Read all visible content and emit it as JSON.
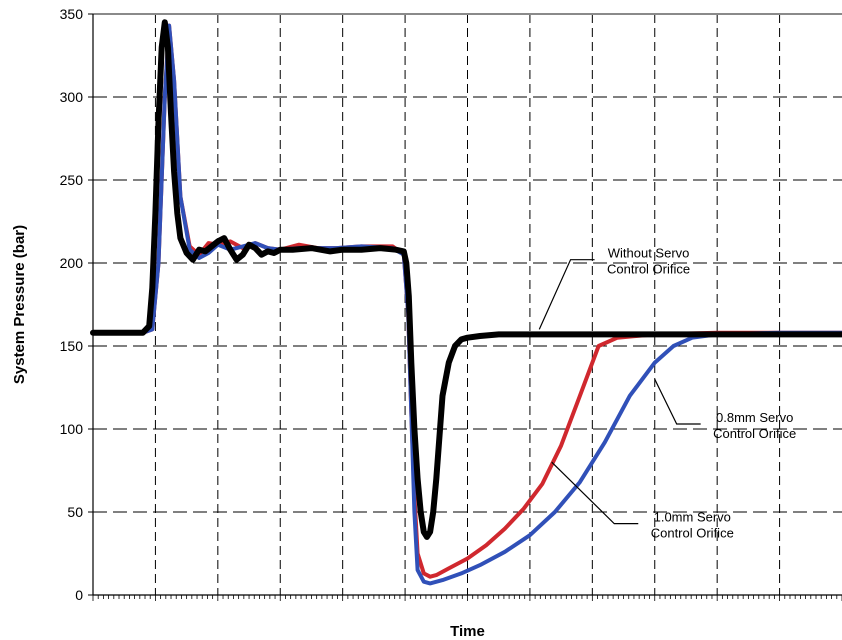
{
  "chart_data": {
    "type": "line",
    "title": "",
    "xlabel": "Time",
    "ylabel": "System Pressure (bar)",
    "ylim": [
      0,
      350
    ],
    "yticks": [
      0,
      50,
      100,
      150,
      200,
      250,
      300,
      350
    ],
    "xlim": [
      0,
      12
    ],
    "x_tick_labels_shown": false,
    "grid": "dashed",
    "series": [
      {
        "color": "#d0282e",
        "x": [
          0,
          0.8,
          0.95,
          1.05,
          1.15,
          1.22,
          1.3,
          1.4,
          1.55,
          1.7,
          1.85,
          2.0,
          2.2,
          2.4,
          2.6,
          2.8,
          3.0,
          3.3,
          3.6,
          3.9,
          4.3,
          4.8,
          4.98,
          5.05,
          5.1,
          5.15,
          5.2,
          5.3,
          5.4,
          5.5,
          5.7,
          6.0,
          6.3,
          6.6,
          6.9,
          7.2,
          7.5,
          7.8,
          8.1,
          8.4,
          9.0,
          10.0,
          11.0,
          12.0
        ],
        "values": [
          158,
          158,
          160,
          200,
          300,
          343,
          310,
          240,
          210,
          205,
          212,
          211,
          213,
          209,
          212,
          209,
          208,
          211,
          209,
          209,
          210,
          210,
          205,
          170,
          110,
          60,
          25,
          13,
          11,
          12,
          16,
          22,
          30,
          40,
          52,
          67,
          90,
          120,
          150,
          155,
          157,
          158,
          158,
          158
        ]
      },
      {
        "color": "#3050b8",
        "x": [
          0,
          0.8,
          0.95,
          1.05,
          1.15,
          1.22,
          1.3,
          1.4,
          1.55,
          1.7,
          1.85,
          2.0,
          2.2,
          2.4,
          2.6,
          2.8,
          3.0,
          3.3,
          3.6,
          3.9,
          4.3,
          4.8,
          4.98,
          5.05,
          5.1,
          5.15,
          5.2,
          5.3,
          5.4,
          5.6,
          5.9,
          6.2,
          6.6,
          7.0,
          7.4,
          7.8,
          8.2,
          8.6,
          9.0,
          9.3,
          9.6,
          10.0,
          11.0,
          12.0
        ],
        "values": [
          158,
          158,
          160,
          200,
          300,
          343,
          310,
          240,
          208,
          203,
          206,
          211,
          208,
          210,
          212,
          209,
          208,
          209,
          209,
          209,
          210,
          209,
          205,
          170,
          110,
          50,
          15,
          8,
          7,
          9,
          13,
          18,
          26,
          36,
          50,
          68,
          92,
          120,
          140,
          150,
          155,
          157,
          158,
          158
        ]
      },
      {
        "color": "#000000",
        "x": [
          0,
          0.8,
          0.9,
          0.95,
          1.0,
          1.05,
          1.1,
          1.15,
          1.2,
          1.25,
          1.3,
          1.35,
          1.4,
          1.5,
          1.6,
          1.7,
          1.8,
          1.9,
          2.0,
          2.1,
          2.2,
          2.3,
          2.4,
          2.5,
          2.6,
          2.7,
          2.8,
          2.9,
          3.0,
          3.2,
          3.5,
          3.8,
          4.0,
          4.3,
          4.6,
          4.85,
          4.98,
          5.02,
          5.06,
          5.1,
          5.15,
          5.2,
          5.25,
          5.3,
          5.35,
          5.4,
          5.45,
          5.5,
          5.55,
          5.6,
          5.7,
          5.8,
          5.9,
          6.0,
          6.2,
          6.5,
          7.0,
          8.0,
          9.0,
          10.0,
          11.0,
          12.0
        ],
        "values": [
          158,
          158,
          162,
          185,
          230,
          285,
          330,
          345,
          330,
          290,
          255,
          230,
          215,
          206,
          202,
          208,
          207,
          210,
          213,
          215,
          208,
          202,
          205,
          211,
          209,
          205,
          207,
          206,
          208,
          208,
          209,
          207,
          208,
          208,
          209,
          208,
          207,
          200,
          180,
          140,
          100,
          70,
          50,
          38,
          35,
          38,
          50,
          70,
          95,
          120,
          140,
          150,
          154,
          155,
          156,
          157,
          157,
          157,
          157,
          157,
          157,
          157
        ]
      }
    ],
    "annotations": [
      {
        "lines": [
          "Without Servo",
          "Control Orifice"
        ],
        "x": 7.15,
        "y": 160,
        "text_x": 8.1,
        "text_y": 202
      },
      {
        "lines": [
          "0.8mm Servo",
          "Control Orifice"
        ],
        "x": 9.0,
        "y": 130,
        "text_x": 9.8,
        "text_y": 103
      },
      {
        "lines": [
          "1.0mm Servo",
          "Control Orifice"
        ],
        "x": 7.35,
        "y": 80,
        "text_x": 8.8,
        "text_y": 43
      }
    ]
  }
}
